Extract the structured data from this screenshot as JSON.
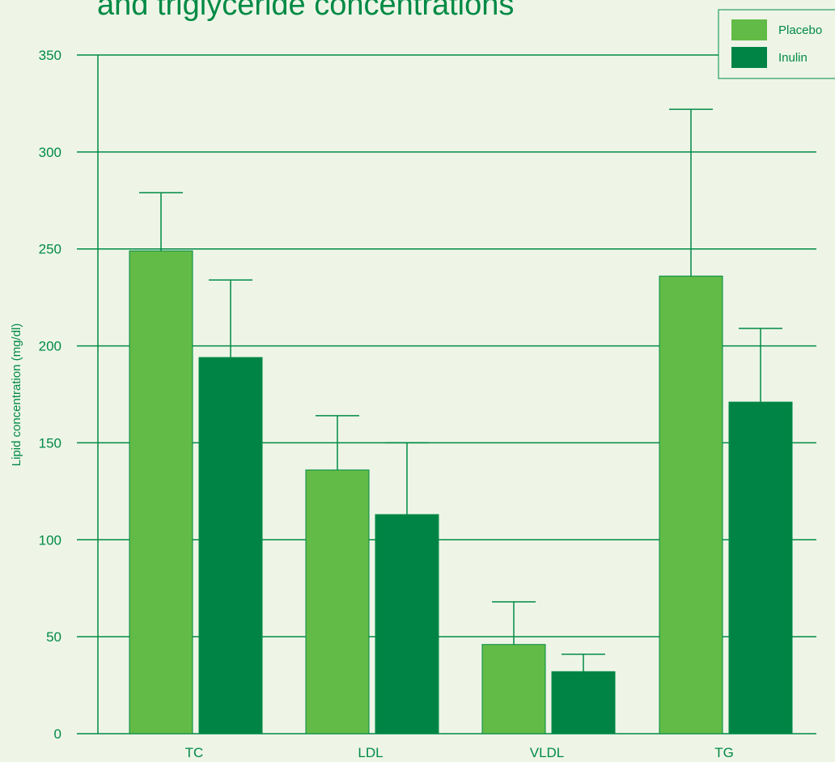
{
  "chart_data": {
    "type": "bar",
    "title": "and triglyceride concentrations",
    "ylabel": "Lipid concentration (mg/dl)",
    "xlabel": "",
    "ylim": [
      0,
      350
    ],
    "yticks": [
      0,
      50,
      100,
      150,
      200,
      250,
      300,
      350
    ],
    "categories": [
      "TC",
      "LDL",
      "VLDL",
      "TG"
    ],
    "series": [
      {
        "name": "Placebo",
        "values": [
          249,
          136,
          46,
          236
        ],
        "errors": [
          30,
          28,
          22,
          86
        ],
        "color": "#62bb46"
      },
      {
        "name": "Inulin",
        "values": [
          194,
          113,
          32,
          171
        ],
        "errors": [
          40,
          37,
          9,
          38
        ],
        "color": "#008445"
      }
    ],
    "grid": true,
    "legend_position": "top-right"
  }
}
